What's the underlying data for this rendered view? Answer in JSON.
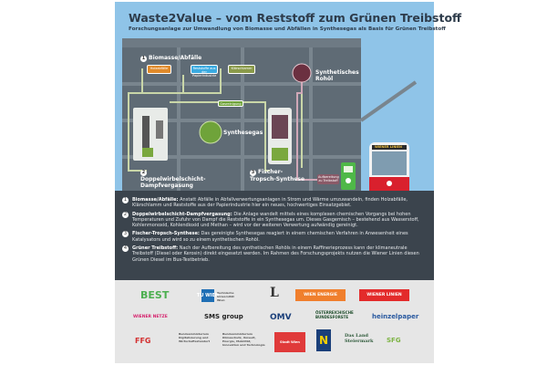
{
  "header": {
    "title": "Waste2Value – vom Reststoff zum Grünen Treibstoff",
    "subtitle": "Forschungsanlage zur Umwandlung von Biomasse und Abfällen in Synthesegas als Basis für Grünen Treibstoff"
  },
  "diagram": {
    "step1": "Biomasse/Abfälle",
    "inputs": [
      "Holzabfälle",
      "Reststoffe aus der Papierindustrie",
      "Klärschlamm"
    ],
    "step2": "Doppelwirbelschicht-Dampfvergasung",
    "synthesegas": "Synthesegas",
    "gasreinigung": "Gasreinigung",
    "step3": "Fischer-Tropsch-Synthese",
    "rohoel": "Synthetisches Rohöl",
    "aufbereitung": "Aufbereitung zu Treibstoff",
    "bus_sign": "WIENER LINIEN",
    "colors": {
      "sky": "#8fc4e8",
      "building": "#5f6b75",
      "green": "#6fa33a",
      "orange": "#e08a2a",
      "blue": "#3aaae0",
      "olive": "#8a9a4a",
      "bus_red": "#d9202d"
    }
  },
  "steps": [
    {
      "n": "1",
      "title": "Biomasse/Abfälle:",
      "text": "Anstatt Abfälle in Abfallverwertungsanlagen in Strom und Wärme umzuwandeln, finden Holzabfälle, Klärschlamm und Reststoffe aus der Papierindustrie hier ein neues, hochwertiges Einsatzgebiet."
    },
    {
      "n": "2",
      "title": "Doppelwirbelschicht-Dampfvergasung:",
      "text": "Die Anlage wandelt mittels eines komplexen chemischen Vorgangs bei hohen Temperaturen und Zufuhr von Dampf die Reststoffe in ein Synthesegas um. Dieses Gasgemisch – bestehend aus Wasserstoff, Kohlenmonoxid, Kohlendioxid und Methan – wird vor der weiteren Verwertung aufwändig gereinigt."
    },
    {
      "n": "3",
      "title": "Fischer-Tropsch-Synthese:",
      "text": "Das gereinigte Synthesegas reagiert in einem chemischen Verfahren in Anwesenheit eines Katalysators und wird so zu einem synthetischen Rohöl."
    },
    {
      "n": "4",
      "title": "Grüner Treibstoff:",
      "text": "Nach der Aufbereitung des synthetischen Rohöls in einem Raffinerieprozess kann der klimaneutrale Treibstoff (Diesel oder Kerosin) direkt eingesetzt werden. Im Rahmen des Forschungsprojekts nutzen die Wiener Linien diesen Grünen Diesel im Bus-Testbetrieb."
    }
  ],
  "logos": [
    "BEST",
    "TU WIEN",
    "Technische Universität Wien",
    "L",
    "WIEN ENERGIE",
    "WIENER LINIEN",
    "WIENER NETZE",
    "SMS group",
    "OMV",
    "ÖSTERREICHISCHE BUNDESFORSTE",
    "heinzelpaper",
    "FFG",
    "Bundesministerium Digitalisierung und Wirtschaftsstandort",
    "Bundesministerium Klimaschutz, Umwelt, Energie, Mobilität, Innovation und Technologie",
    "Stadt Wien",
    "N",
    "Das Land Steiermark",
    "SFG"
  ]
}
